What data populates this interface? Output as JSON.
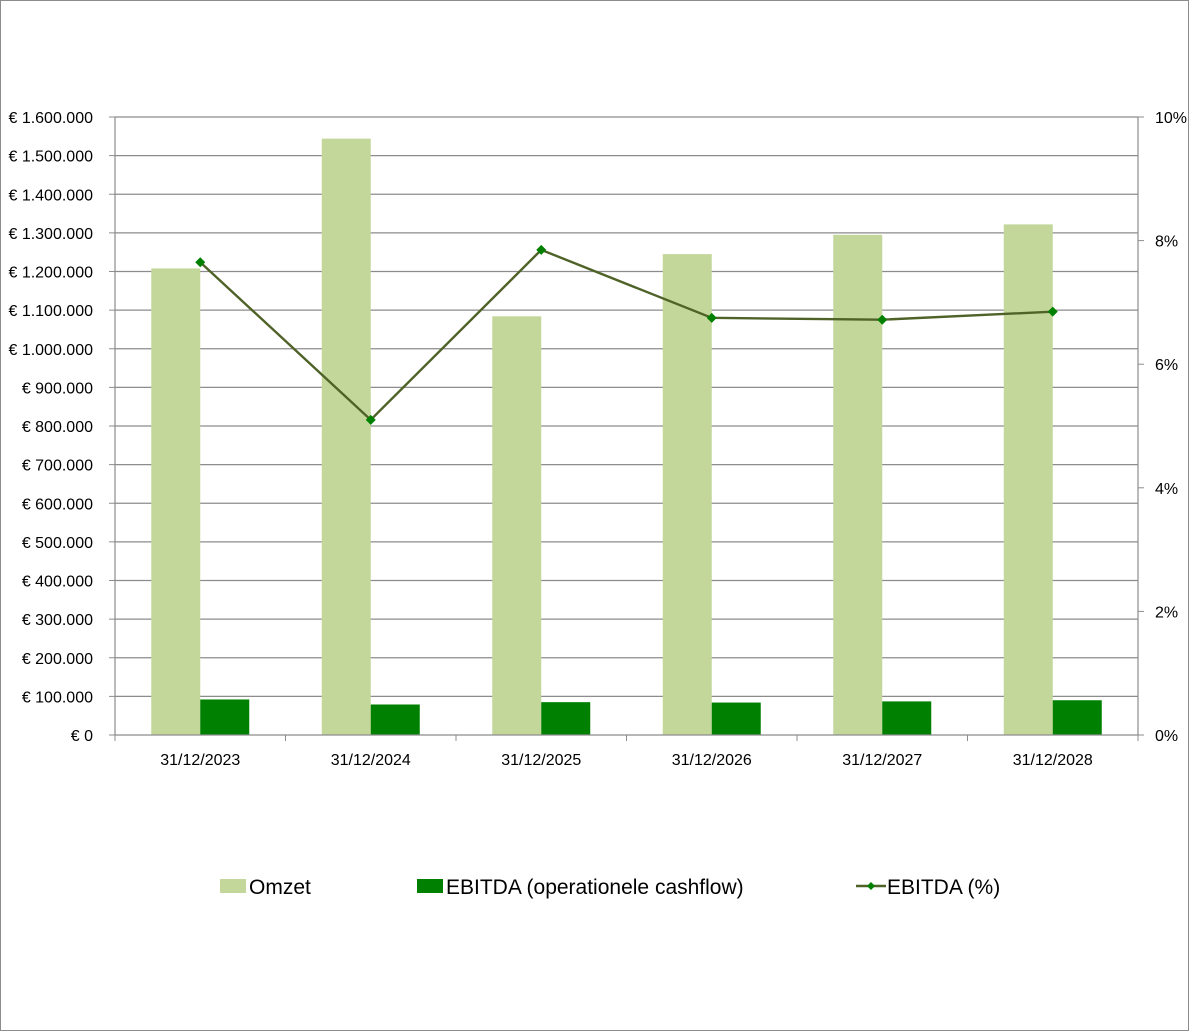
{
  "chart_data": {
    "type": "bar",
    "categories": [
      "31/12/2023",
      "31/12/2024",
      "31/12/2025",
      "31/12/2026",
      "31/12/2027",
      "31/12/2028"
    ],
    "series": [
      {
        "name": "Omzet",
        "type": "bar",
        "axis": "left",
        "color": "#c4d79b",
        "values": [
          1208000,
          1544000,
          1084000,
          1245000,
          1295000,
          1322000
        ]
      },
      {
        "name": "EBITDA (operationele cashflow)",
        "type": "bar",
        "axis": "left",
        "color": "#008000",
        "values": [
          92000,
          79000,
          85000,
          84000,
          87000,
          90000
        ]
      },
      {
        "name": "EBITDA (%)",
        "type": "line",
        "axis": "right",
        "color": "#4f6228",
        "marker_color": "#008000",
        "marker": "diamond",
        "values": [
          7.65,
          5.1,
          7.85,
          6.75,
          6.72,
          6.85
        ]
      }
    ],
    "y_left": {
      "ylim": [
        0,
        1600000
      ],
      "ticks": [
        "€ 0",
        "€ 100.000",
        "€ 200.000",
        "€ 300.000",
        "€ 400.000",
        "€ 500.000",
        "€ 600.000",
        "€ 700.000",
        "€ 800.000",
        "€ 900.000",
        "€ 1.000.000",
        "€ 1.100.000",
        "€ 1.200.000",
        "€ 1.300.000",
        "€ 1.400.000",
        "€ 1.500.000",
        "€ 1.600.000"
      ]
    },
    "y_right": {
      "ylim": [
        0,
        10
      ],
      "ticks": [
        "0%",
        "2%",
        "4%",
        "6%",
        "8%",
        "10%"
      ]
    },
    "grid": true,
    "legend_position": "bottom"
  }
}
